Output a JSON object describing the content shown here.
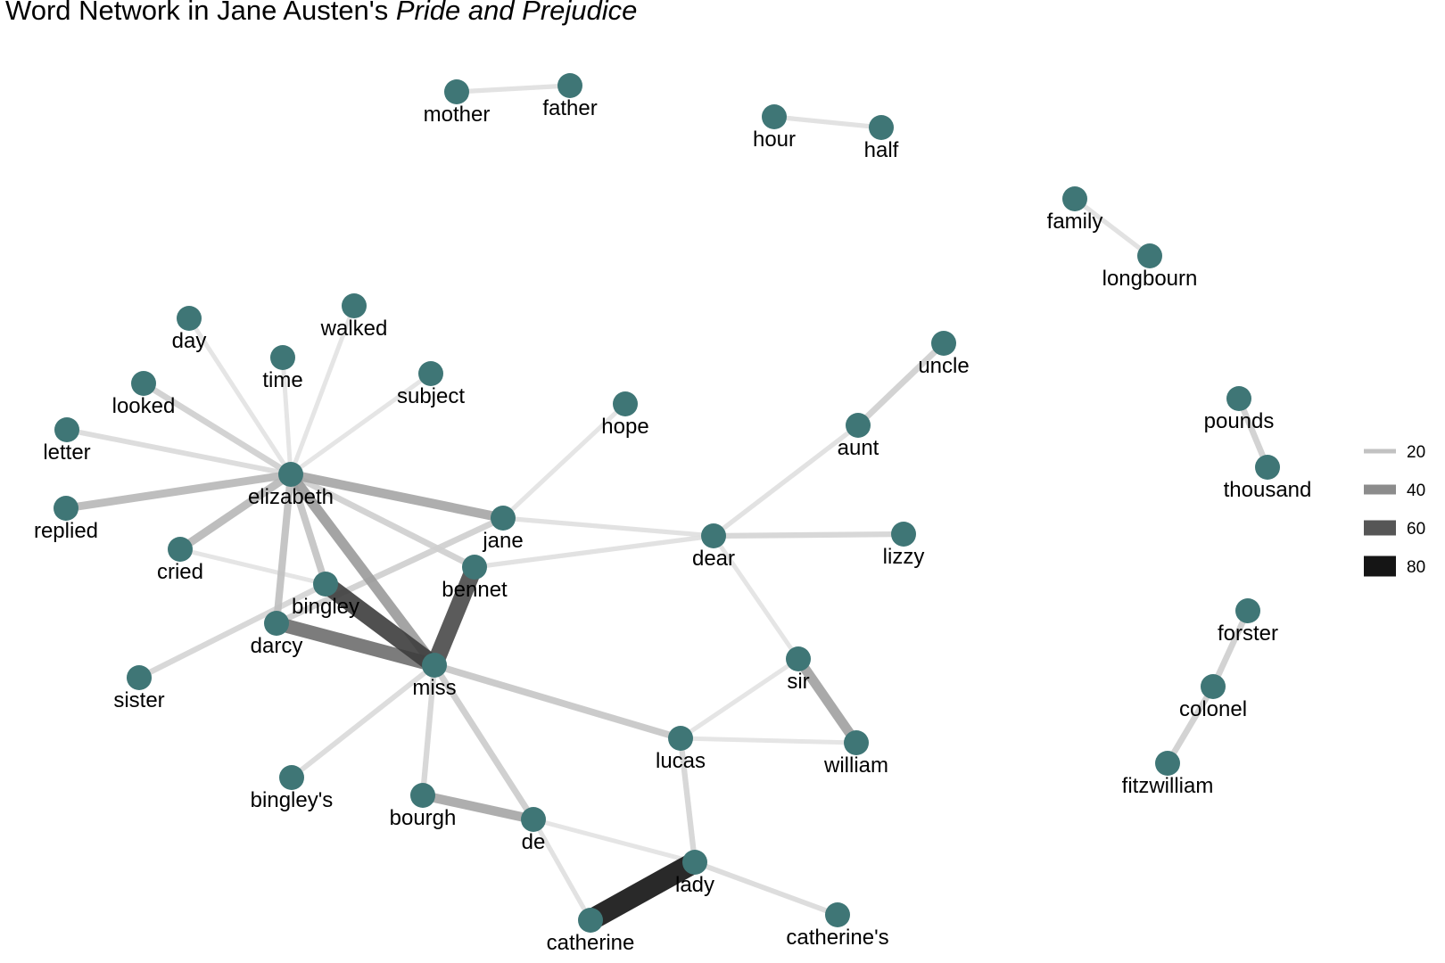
{
  "title": {
    "main": "Word Network in Jane Austen's ",
    "italic": "Pride and Prejudice"
  },
  "node_color": "#3f7676",
  "legend": {
    "entries": [
      {
        "value": "20",
        "color": "#c2c2c2"
      },
      {
        "value": "40",
        "color": "#8c8c8c"
      },
      {
        "value": "60",
        "color": "#565656"
      },
      {
        "value": "80",
        "color": "#151515"
      }
    ]
  },
  "nodes": [
    {
      "id": "mother",
      "label": "mother"
    },
    {
      "id": "father",
      "label": "father"
    },
    {
      "id": "hour",
      "label": "hour"
    },
    {
      "id": "half",
      "label": "half"
    },
    {
      "id": "family",
      "label": "family"
    },
    {
      "id": "longbourn",
      "label": "longbourn"
    },
    {
      "id": "day",
      "label": "day"
    },
    {
      "id": "walked",
      "label": "walked"
    },
    {
      "id": "time",
      "label": "time"
    },
    {
      "id": "looked",
      "label": "looked"
    },
    {
      "id": "subject",
      "label": "subject"
    },
    {
      "id": "hope",
      "label": "hope"
    },
    {
      "id": "letter",
      "label": "letter"
    },
    {
      "id": "elizabeth",
      "label": "elizabeth"
    },
    {
      "id": "replied",
      "label": "replied"
    },
    {
      "id": "cried",
      "label": "cried"
    },
    {
      "id": "jane",
      "label": "jane"
    },
    {
      "id": "bennet",
      "label": "bennet"
    },
    {
      "id": "bingley",
      "label": "bingley"
    },
    {
      "id": "darcy",
      "label": "darcy"
    },
    {
      "id": "sister",
      "label": "sister"
    },
    {
      "id": "miss",
      "label": "miss"
    },
    {
      "id": "bingleys",
      "label": "bingley's"
    },
    {
      "id": "bourgh",
      "label": "bourgh"
    },
    {
      "id": "de",
      "label": "de"
    },
    {
      "id": "catherine",
      "label": "catherine"
    },
    {
      "id": "lady",
      "label": "lady"
    },
    {
      "id": "catherines",
      "label": "catherine's"
    },
    {
      "id": "lucas",
      "label": "lucas"
    },
    {
      "id": "william",
      "label": "william"
    },
    {
      "id": "sir",
      "label": "sir"
    },
    {
      "id": "dear",
      "label": "dear"
    },
    {
      "id": "lizzy",
      "label": "lizzy"
    },
    {
      "id": "aunt",
      "label": "aunt"
    },
    {
      "id": "uncle",
      "label": "uncle"
    },
    {
      "id": "pounds",
      "label": "pounds"
    },
    {
      "id": "thousand",
      "label": "thousand"
    },
    {
      "id": "forster",
      "label": "forster"
    },
    {
      "id": "colonel",
      "label": "colonel"
    },
    {
      "id": "fitzwilliam",
      "label": "fitzwilliam"
    }
  ],
  "edges": [
    {
      "from": "mother",
      "to": "father",
      "n": 16
    },
    {
      "from": "hour",
      "to": "half",
      "n": 16
    },
    {
      "from": "family",
      "to": "longbourn",
      "n": 16
    },
    {
      "from": "elizabeth",
      "to": "day",
      "n": 15
    },
    {
      "from": "elizabeth",
      "to": "walked",
      "n": 15
    },
    {
      "from": "elizabeth",
      "to": "time",
      "n": 15
    },
    {
      "from": "elizabeth",
      "to": "looked",
      "n": 22
    },
    {
      "from": "elizabeth",
      "to": "subject",
      "n": 15
    },
    {
      "from": "elizabeth",
      "to": "letter",
      "n": 18
    },
    {
      "from": "elizabeth",
      "to": "replied",
      "n": 30
    },
    {
      "from": "elizabeth",
      "to": "cried",
      "n": 30
    },
    {
      "from": "elizabeth",
      "to": "jane",
      "n": 36
    },
    {
      "from": "elizabeth",
      "to": "bennet",
      "n": 22
    },
    {
      "from": "elizabeth",
      "to": "bingley",
      "n": 26
    },
    {
      "from": "elizabeth",
      "to": "darcy",
      "n": 27
    },
    {
      "from": "elizabeth",
      "to": "miss",
      "n": 40
    },
    {
      "from": "jane",
      "to": "hope",
      "n": 15
    },
    {
      "from": "jane",
      "to": "dear",
      "n": 16
    },
    {
      "from": "jane",
      "to": "darcy",
      "n": 22
    },
    {
      "from": "cried",
      "to": "bingley",
      "n": 15
    },
    {
      "from": "bennet",
      "to": "dear",
      "n": 16
    },
    {
      "from": "bennet",
      "to": "miss",
      "n": 68
    },
    {
      "from": "bingley",
      "to": "miss",
      "n": 72
    },
    {
      "from": "darcy",
      "to": "miss",
      "n": 55
    },
    {
      "from": "sister",
      "to": "bingley",
      "n": 20
    },
    {
      "from": "miss",
      "to": "bingleys",
      "n": 18
    },
    {
      "from": "miss",
      "to": "bourgh",
      "n": 20
    },
    {
      "from": "miss",
      "to": "de",
      "n": 23
    },
    {
      "from": "miss",
      "to": "lucas",
      "n": 25
    },
    {
      "from": "bourgh",
      "to": "de",
      "n": 36
    },
    {
      "from": "de",
      "to": "lady",
      "n": 15
    },
    {
      "from": "de",
      "to": "catherine",
      "n": 16
    },
    {
      "from": "catherine",
      "to": "lady",
      "n": 87
    },
    {
      "from": "lady",
      "to": "catherines",
      "n": 18
    },
    {
      "from": "lady",
      "to": "lucas",
      "n": 20
    },
    {
      "from": "lucas",
      "to": "william",
      "n": 15
    },
    {
      "from": "lucas",
      "to": "sir",
      "n": 15
    },
    {
      "from": "sir",
      "to": "william",
      "n": 38
    },
    {
      "from": "dear",
      "to": "sir",
      "n": 15
    },
    {
      "from": "dear",
      "to": "lizzy",
      "n": 20
    },
    {
      "from": "dear",
      "to": "aunt",
      "n": 16
    },
    {
      "from": "aunt",
      "to": "uncle",
      "n": 22
    },
    {
      "from": "pounds",
      "to": "thousand",
      "n": 22
    },
    {
      "from": "forster",
      "to": "colonel",
      "n": 22
    },
    {
      "from": "colonel",
      "to": "fitzwilliam",
      "n": 22
    }
  ]
}
